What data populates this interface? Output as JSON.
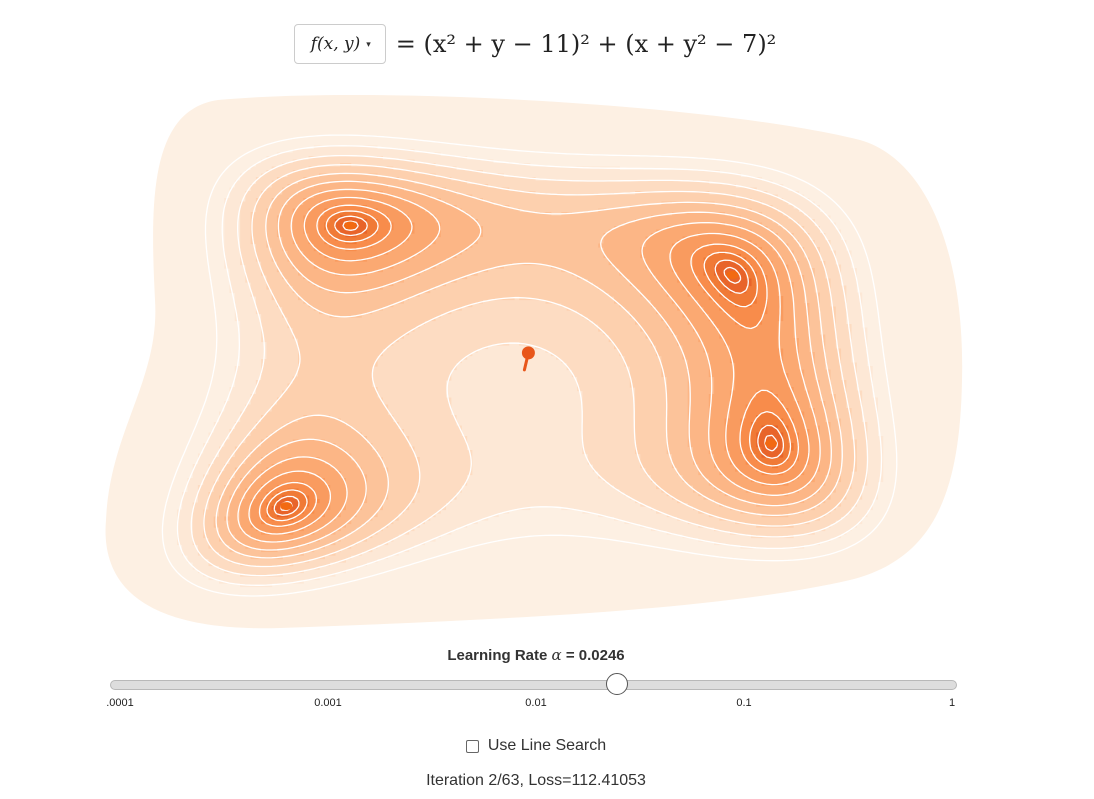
{
  "function_selector": {
    "selected_label": "f(x, y)",
    "caret": "▾"
  },
  "equation": {
    "lhs": "=",
    "text": "(x² + y − 11)² + (x + y² − 7)²"
  },
  "learning_rate": {
    "label_prefix": "Learning Rate",
    "symbol": "α",
    "label_suffix": "= 0.0246",
    "value": 0.0246,
    "scale": "log",
    "min": 0.0001,
    "max": 1,
    "ticks": [
      ".0001",
      "0.001",
      "0.01",
      "0.1",
      "1"
    ]
  },
  "line_search": {
    "label": "Use Line Search",
    "checked": false
  },
  "status": {
    "text": "Iteration 2/63, Loss=112.41053"
  },
  "contour_plot": {
    "function": "himmelblau",
    "x_range": [
      -6,
      6
    ],
    "y_range": [
      -6,
      6
    ],
    "levels": [
      0.5,
      2,
      5,
      10,
      20,
      35,
      55,
      80,
      115,
      160,
      220,
      300,
      400,
      520
    ],
    "colors": [
      "#fdf0e3",
      "#fde8d6",
      "#fddcc2",
      "#fdd0ae",
      "#fcc39a",
      "#fcb686",
      "#fba972",
      "#f99b5f",
      "#f88c4b",
      "#f07a36",
      "#e8642a"
    ],
    "contour_line_color": "#ffffff",
    "minima_color": "#f26a12",
    "marker": {
      "color": "#e8561a",
      "position": [
        -0.1,
        0.22
      ]
    }
  }
}
